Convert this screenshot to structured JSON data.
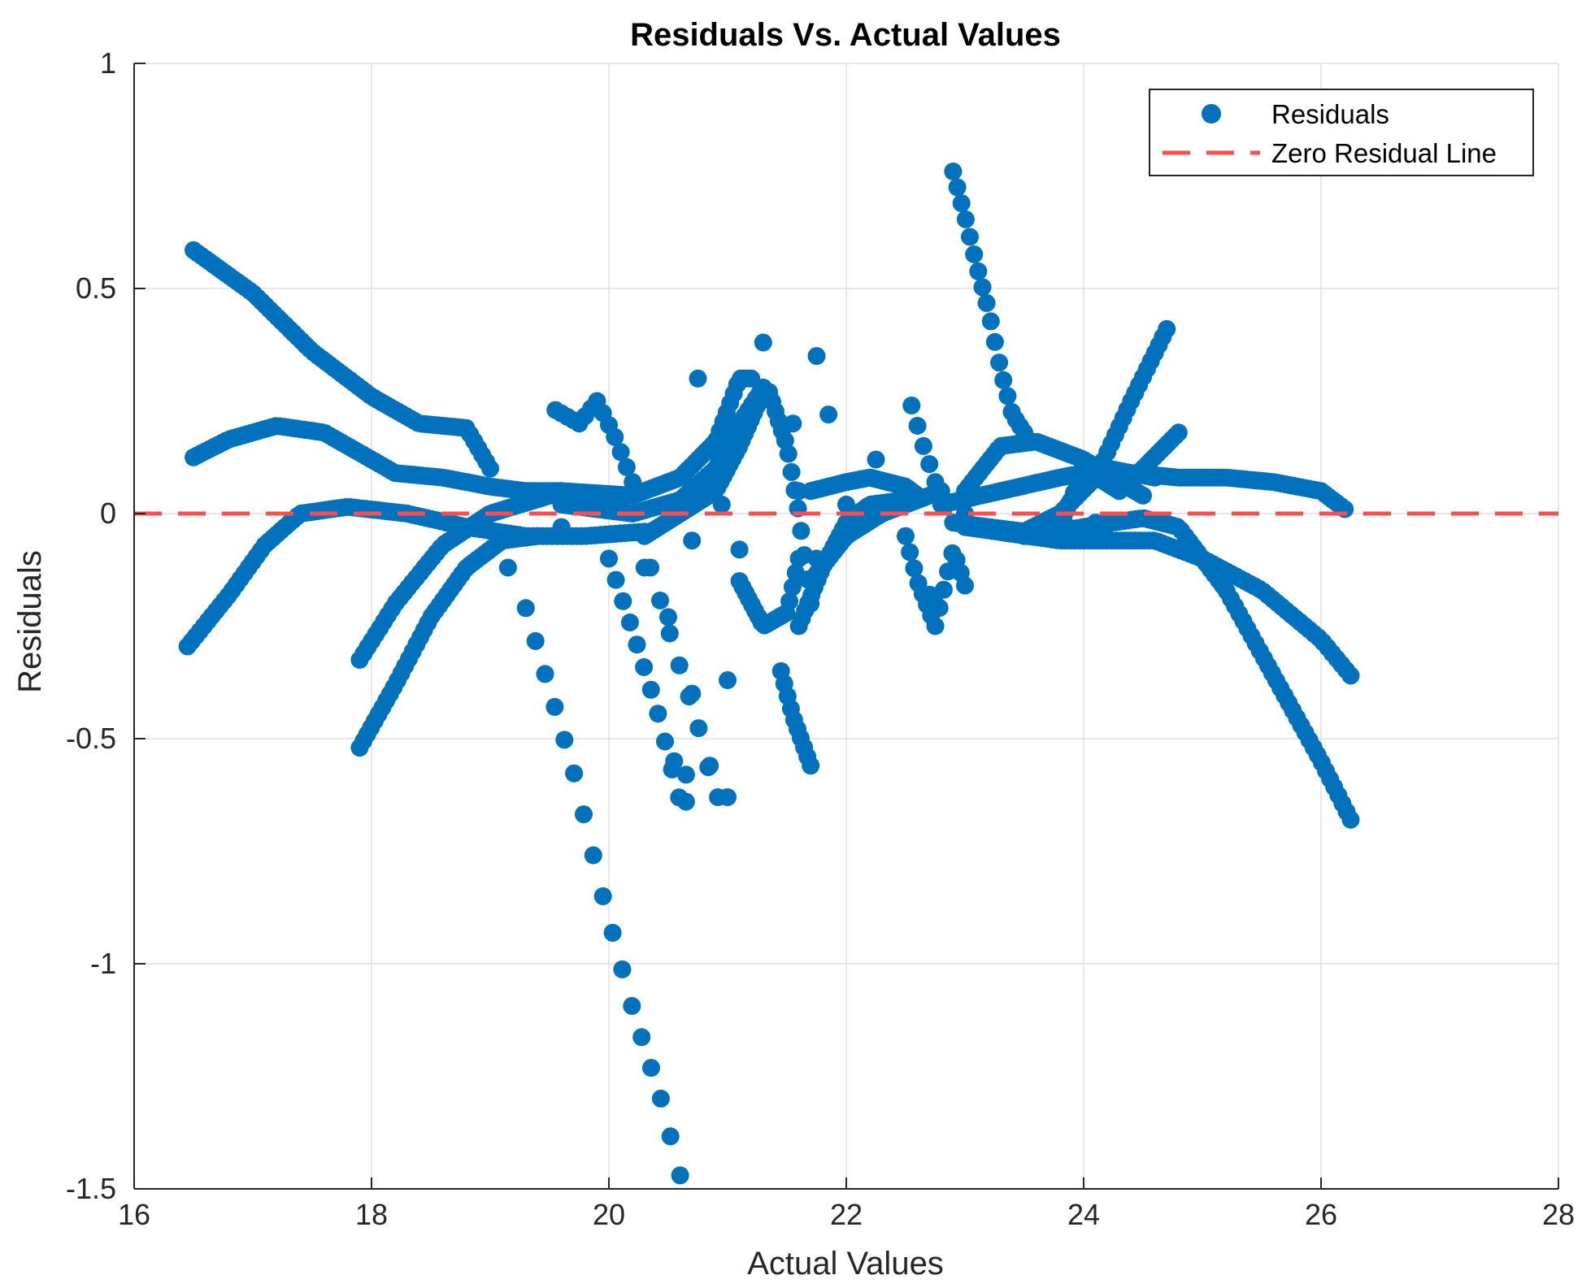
{
  "chart_data": {
    "type": "scatter",
    "title": "Residuals Vs. Actual Values",
    "xlabel": "Actual Values",
    "ylabel": "Residuals",
    "xlim": [
      16,
      28
    ],
    "ylim": [
      -1.5,
      1
    ],
    "xticks": [
      16,
      18,
      20,
      22,
      24,
      26,
      28
    ],
    "yticks": [
      1,
      0.5,
      0,
      -0.5,
      -1,
      -1.5
    ],
    "xtick_labels": [
      "16",
      "18",
      "20",
      "22",
      "24",
      "26",
      "28"
    ],
    "ytick_labels": [
      "1",
      "0.5",
      "0",
      "-0.5",
      "-1",
      "-1.5"
    ],
    "grid": true,
    "legend_position": "top-right",
    "colors": {
      "residuals": "#0072BD",
      "zero_line": "#FF4D4D",
      "grid": "#E0E0E0",
      "axis": "#262626"
    },
    "series": [
      {
        "name": "Residuals",
        "kind": "scatter",
        "segments": [
          {
            "id": "A",
            "x0": 16.5,
            "x1": 19.0,
            "n": 75,
            "pts": [
              [
                16.5,
                0.585
              ],
              [
                17.0,
                0.49
              ],
              [
                17.5,
                0.36
              ],
              [
                18.0,
                0.26
              ],
              [
                18.4,
                0.2
              ],
              [
                18.8,
                0.19
              ],
              [
                19.0,
                0.1
              ]
            ]
          },
          {
            "id": "B",
            "x0": 16.5,
            "x1": 18.2,
            "n": 50,
            "pts": [
              [
                16.5,
                0.125
              ],
              [
                16.8,
                0.165
              ],
              [
                17.2,
                0.195
              ],
              [
                17.6,
                0.18
              ],
              [
                18.0,
                0.12
              ],
              [
                18.2,
                0.09
              ]
            ]
          },
          {
            "id": "C",
            "x0": 16.45,
            "x1": 18.3,
            "n": 55,
            "pts": [
              [
                16.45,
                -0.295
              ],
              [
                16.8,
                -0.18
              ],
              [
                17.1,
                -0.07
              ],
              [
                17.4,
                0.0
              ],
              [
                17.8,
                0.015
              ],
              [
                18.3,
                0.0
              ]
            ]
          },
          {
            "id": "D",
            "x0": 18.2,
            "x1": 19.6,
            "n": 45,
            "pts": [
              [
                18.2,
                0.09
              ],
              [
                18.6,
                0.08
              ],
              [
                19.0,
                0.06
              ],
              [
                19.3,
                0.05
              ],
              [
                19.6,
                0.05
              ]
            ]
          },
          {
            "id": "E",
            "x0": 18.3,
            "x1": 20.3,
            "n": 50,
            "pts": [
              [
                18.3,
                0.0
              ],
              [
                18.8,
                -0.03
              ],
              [
                19.3,
                -0.05
              ],
              [
                19.8,
                -0.05
              ],
              [
                20.3,
                -0.04
              ]
            ]
          },
          {
            "id": "F",
            "x0": 17.9,
            "x1": 19.5,
            "n": 48,
            "pts": [
              [
                17.9,
                -0.325
              ],
              [
                18.2,
                -0.2
              ],
              [
                18.6,
                -0.07
              ],
              [
                19.0,
                0.0
              ],
              [
                19.5,
                0.04
              ]
            ]
          },
          {
            "id": "G",
            "x0": 17.9,
            "x1": 19.4,
            "n": 48,
            "pts": [
              [
                17.9,
                -0.52
              ],
              [
                18.2,
                -0.38
              ],
              [
                18.5,
                -0.23
              ],
              [
                18.8,
                -0.12
              ],
              [
                19.1,
                -0.06
              ],
              [
                19.4,
                -0.05
              ]
            ]
          },
          {
            "id": "H",
            "x0": 19.3,
            "x1": 20.6,
            "n": 17,
            "pts": [
              [
                19.3,
                -0.21
              ],
              [
                19.7,
                -0.57
              ],
              [
                19.95,
                -0.85
              ],
              [
                20.2,
                -1.1
              ],
              [
                20.45,
                -1.31
              ],
              [
                20.6,
                -1.47
              ]
            ]
          },
          {
            "id": "I",
            "x0": 19.55,
            "x1": 20.2,
            "n": 14,
            "pts": [
              [
                19.55,
                0.23
              ],
              [
                19.75,
                0.2
              ],
              [
                19.9,
                0.25
              ],
              [
                20.05,
                0.17
              ],
              [
                20.2,
                0.07
              ]
            ]
          },
          {
            "id": "J",
            "x0": 20.0,
            "x1": 20.65,
            "n": 12,
            "pts": [
              [
                20.0,
                -0.1
              ],
              [
                20.2,
                -0.26
              ],
              [
                20.4,
                -0.43
              ],
              [
                20.6,
                -0.64
              ]
            ]
          },
          {
            "id": "K",
            "x0": 20.35,
            "x1": 21.0,
            "n": 9,
            "pts": [
              [
                20.35,
                -0.12
              ],
              [
                20.55,
                -0.3
              ],
              [
                20.75,
                -0.47
              ],
              [
                20.9,
                -0.63
              ]
            ]
          },
          {
            "id": "L",
            "x0": 19.6,
            "x1": 21.2,
            "n": 55,
            "pts": [
              [
                19.6,
                0.05
              ],
              [
                20.2,
                0.04
              ],
              [
                20.6,
                0.08
              ],
              [
                20.9,
                0.16
              ],
              [
                21.1,
                0.3
              ],
              [
                21.2,
                0.3
              ]
            ]
          },
          {
            "id": "M",
            "x0": 19.6,
            "x1": 21.3,
            "n": 55,
            "pts": [
              [
                19.6,
                0.02
              ],
              [
                20.2,
                0.0
              ],
              [
                20.6,
                0.03
              ],
              [
                20.9,
                0.1
              ],
              [
                21.1,
                0.2
              ],
              [
                21.3,
                0.28
              ]
            ]
          },
          {
            "id": "N",
            "x0": 20.3,
            "x1": 21.3,
            "n": 40,
            "pts": [
              [
                20.3,
                -0.05
              ],
              [
                20.6,
                0.0
              ],
              [
                20.9,
                0.05
              ],
              [
                21.1,
                0.15
              ],
              [
                21.3,
                0.27
              ]
            ]
          },
          {
            "id": "O",
            "x0": 21.1,
            "x1": 21.6,
            "n": 20,
            "pts": [
              [
                21.1,
                -0.15
              ],
              [
                21.3,
                -0.25
              ],
              [
                21.5,
                -0.22
              ],
              [
                21.6,
                -0.1
              ]
            ]
          },
          {
            "id": "P",
            "x0": 21.35,
            "x1": 21.7,
            "n": 14,
            "pts": [
              [
                21.35,
                0.27
              ],
              [
                21.5,
                0.15
              ],
              [
                21.6,
                0.0
              ],
              [
                21.7,
                -0.2
              ]
            ]
          },
          {
            "id": "Q",
            "x0": 21.45,
            "x1": 21.7,
            "n": 10,
            "pts": [
              [
                21.45,
                -0.35
              ],
              [
                21.55,
                -0.45
              ],
              [
                21.7,
                -0.56
              ]
            ]
          },
          {
            "id": "R",
            "x0": 21.6,
            "x1": 22.5,
            "n": 35,
            "pts": [
              [
                21.6,
                -0.25
              ],
              [
                21.8,
                -0.12
              ],
              [
                22.0,
                -0.02
              ],
              [
                22.2,
                0.02
              ],
              [
                22.5,
                0.03
              ]
            ]
          },
          {
            "id": "S",
            "x0": 21.7,
            "x1": 22.6,
            "n": 35,
            "pts": [
              [
                21.7,
                0.05
              ],
              [
                22.0,
                0.07
              ],
              [
                22.2,
                0.08
              ],
              [
                22.5,
                0.06
              ],
              [
                22.6,
                0.04
              ]
            ]
          },
          {
            "id": "T",
            "x0": 21.7,
            "x1": 22.8,
            "n": 40,
            "pts": [
              [
                21.7,
                -0.15
              ],
              [
                22.0,
                -0.05
              ],
              [
                22.3,
                0.0
              ],
              [
                22.6,
                0.03
              ],
              [
                22.8,
                0.05
              ]
            ]
          },
          {
            "id": "U",
            "x0": 22.5,
            "x1": 23.0,
            "n": 15,
            "pts": [
              [
                22.5,
                -0.05
              ],
              [
                22.6,
                -0.15
              ],
              [
                22.75,
                -0.25
              ],
              [
                22.9,
                -0.08
              ],
              [
                23.0,
                -0.16
              ]
            ]
          },
          {
            "id": "V",
            "x0": 22.9,
            "x1": 23.5,
            "n": 18,
            "pts": [
              [
                22.9,
                0.76
              ],
              [
                23.0,
                0.66
              ],
              [
                23.1,
                0.55
              ],
              [
                23.2,
                0.45
              ],
              [
                23.3,
                0.32
              ],
              [
                23.4,
                0.22
              ],
              [
                23.5,
                0.18
              ]
            ]
          },
          {
            "id": "W",
            "x0": 22.55,
            "x1": 22.75,
            "n": 5,
            "pts": [
              [
                22.55,
                0.24
              ],
              [
                22.65,
                0.15
              ],
              [
                22.75,
                0.07
              ]
            ]
          },
          {
            "id": "X",
            "x0": 22.8,
            "x1": 24.6,
            "n": 55,
            "pts": [
              [
                22.8,
                0.02
              ],
              [
                23.3,
                0.05
              ],
              [
                23.8,
                0.08
              ],
              [
                24.2,
                0.1
              ],
              [
                24.6,
                0.08
              ]
            ]
          },
          {
            "id": "Y",
            "x0": 23.0,
            "x1": 24.5,
            "n": 50,
            "pts": [
              [
                23.0,
                0.05
              ],
              [
                23.3,
                0.15
              ],
              [
                23.6,
                0.16
              ],
              [
                24.0,
                0.12
              ],
              [
                24.3,
                0.07
              ],
              [
                24.5,
                0.04
              ]
            ]
          },
          {
            "id": "Z",
            "x0": 22.9,
            "x1": 24.7,
            "n": 55,
            "pts": [
              [
                22.9,
                -0.02
              ],
              [
                23.5,
                -0.04
              ],
              [
                23.8,
                0.0
              ],
              [
                24.1,
                0.08
              ],
              [
                24.4,
                0.25
              ],
              [
                24.7,
                0.41
              ]
            ]
          },
          {
            "id": "AA",
            "x0": 23.8,
            "x1": 24.8,
            "n": 35,
            "pts": [
              [
                23.8,
                -0.03
              ],
              [
                24.0,
                0.1
              ],
              [
                24.3,
                0.05
              ],
              [
                24.5,
                0.1
              ],
              [
                24.8,
                0.18
              ]
            ]
          },
          {
            "id": "AB",
            "x0": 24.4,
            "x1": 26.2,
            "n": 55,
            "pts": [
              [
                24.4,
                0.09
              ],
              [
                24.8,
                0.08
              ],
              [
                25.2,
                0.08
              ],
              [
                25.6,
                0.07
              ],
              [
                26.0,
                0.05
              ],
              [
                26.2,
                0.01
              ]
            ]
          },
          {
            "id": "AC",
            "x0": 23.0,
            "x1": 26.25,
            "n": 85,
            "pts": [
              [
                23.0,
                -0.03
              ],
              [
                23.8,
                -0.06
              ],
              [
                24.6,
                -0.06
              ],
              [
                25.0,
                -0.1
              ],
              [
                25.5,
                -0.17
              ],
              [
                26.0,
                -0.28
              ],
              [
                26.25,
                -0.36
              ]
            ]
          },
          {
            "id": "AD",
            "x0": 23.5,
            "x1": 26.25,
            "n": 80,
            "pts": [
              [
                23.5,
                -0.05
              ],
              [
                24.5,
                -0.01
              ],
              [
                24.8,
                -0.03
              ],
              [
                25.2,
                -0.17
              ],
              [
                25.6,
                -0.36
              ],
              [
                26.0,
                -0.55
              ],
              [
                26.25,
                -0.68
              ]
            ]
          }
        ],
        "outliers": [
          [
            19.15,
            -0.12
          ],
          [
            19.6,
            -0.03
          ],
          [
            20.3,
            -0.12
          ],
          [
            20.5,
            -0.23
          ],
          [
            20.55,
            -0.55
          ],
          [
            20.65,
            -0.58
          ],
          [
            20.7,
            -0.4
          ],
          [
            20.75,
            0.3
          ],
          [
            20.7,
            -0.06
          ],
          [
            20.85,
            -0.56
          ],
          [
            20.95,
            0.02
          ],
          [
            21.0,
            -0.37
          ],
          [
            21.1,
            -0.08
          ],
          [
            21.3,
            0.38
          ],
          [
            21.55,
            0.2
          ],
          [
            21.6,
            0.05
          ],
          [
            21.75,
            0.35
          ],
          [
            21.85,
            0.22
          ],
          [
            21.75,
            -0.1
          ],
          [
            22.0,
            0.02
          ],
          [
            22.25,
            0.12
          ],
          [
            22.7,
            -0.18
          ],
          [
            22.75,
            -0.2
          ],
          [
            23.0,
            0.0
          ],
          [
            24.1,
            -0.02
          ]
        ]
      },
      {
        "name": "Zero Residual Line",
        "kind": "line",
        "style": "dashed",
        "y": 0
      }
    ],
    "legend": [
      {
        "label": "Residuals",
        "marker": "circle"
      },
      {
        "label": "Zero Residual Line",
        "marker": "dashed-line"
      }
    ]
  }
}
